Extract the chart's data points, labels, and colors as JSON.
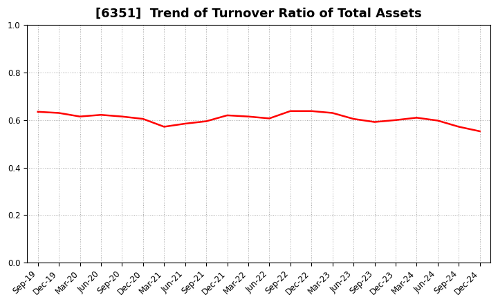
{
  "title": "[6351]  Trend of Turnover Ratio of Total Assets",
  "x_labels": [
    "Sep-19",
    "Dec-19",
    "Mar-20",
    "Jun-20",
    "Sep-20",
    "Dec-20",
    "Mar-21",
    "Jun-21",
    "Sep-21",
    "Dec-21",
    "Mar-22",
    "Jun-22",
    "Sep-22",
    "Dec-22",
    "Mar-23",
    "Jun-23",
    "Sep-23",
    "Dec-23",
    "Mar-24",
    "Jun-24",
    "Sep-24",
    "Dec-24"
  ],
  "values": [
    0.635,
    0.63,
    0.615,
    0.622,
    0.615,
    0.605,
    0.572,
    0.585,
    0.595,
    0.62,
    0.615,
    0.607,
    0.638,
    0.638,
    0.63,
    0.605,
    0.592,
    0.6,
    0.61,
    0.598,
    0.572,
    0.553
  ],
  "line_color": "#FF0000",
  "line_width": 1.8,
  "ylim": [
    0.0,
    1.0
  ],
  "yticks": [
    0.0,
    0.2,
    0.4,
    0.6,
    0.8,
    1.0
  ],
  "background_color": "#ffffff",
  "grid_color": "#aaaaaa",
  "title_fontsize": 13,
  "tick_fontsize": 8.5,
  "label_rotation": 45
}
